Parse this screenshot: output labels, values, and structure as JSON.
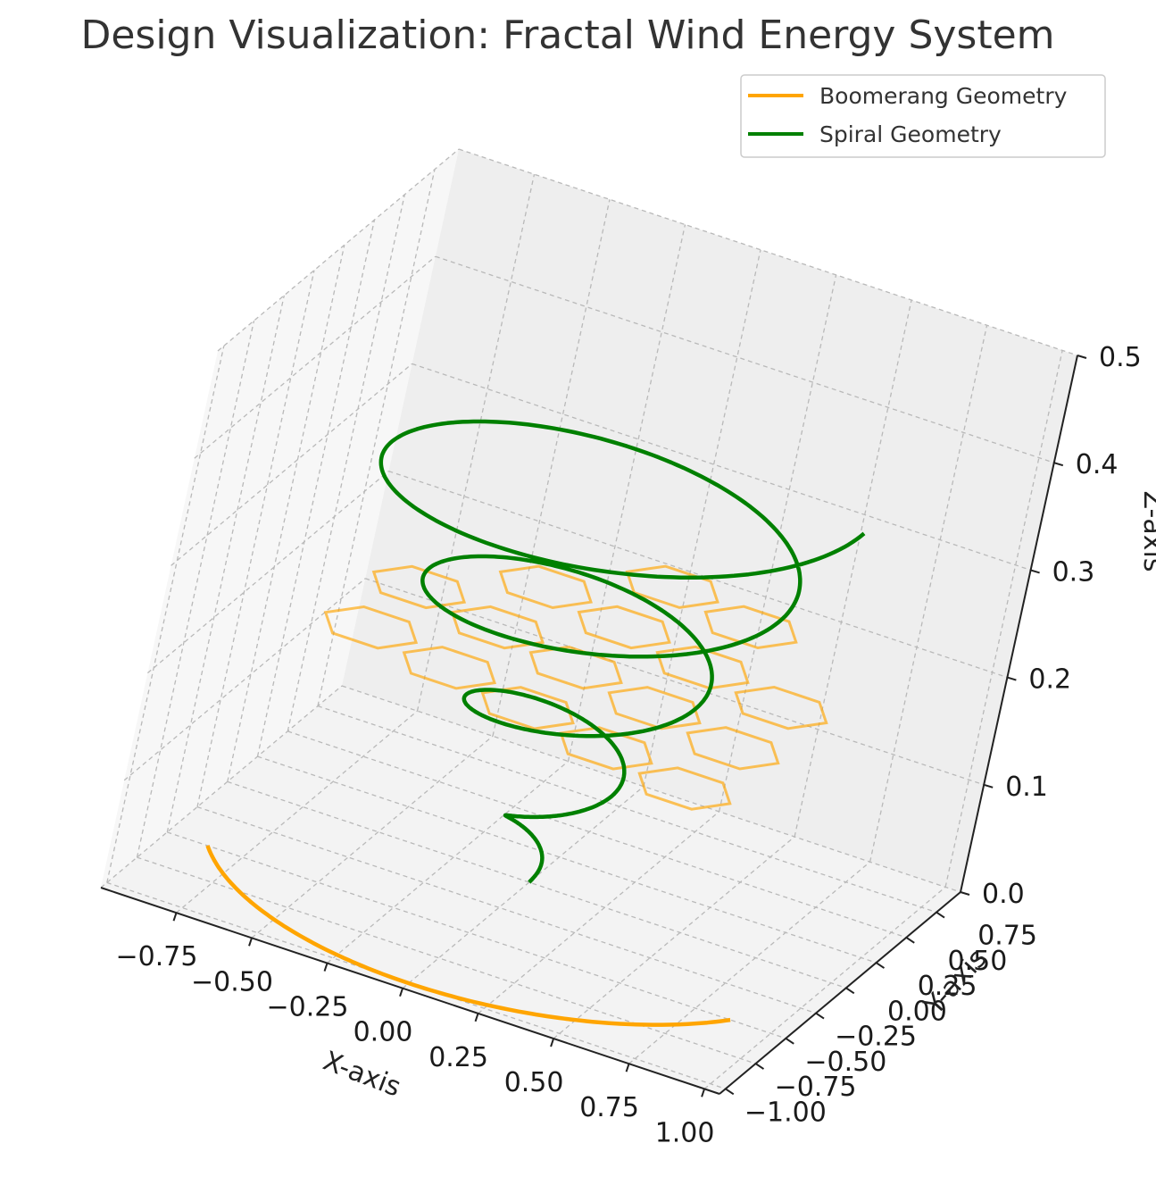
{
  "chart_data": {
    "type": "line",
    "projection": "3d",
    "title": "Design Visualization: Fractal Wind Energy System",
    "xlabel": "X-axis",
    "ylabel": "Y-axis",
    "zlabel": "Z-axis",
    "xlim": [
      -1.0,
      1.05
    ],
    "ylim": [
      -1.05,
      0.95
    ],
    "zlim": [
      0.0,
      0.5
    ],
    "x_ticks": [
      "−0.75",
      "−0.50",
      "−0.25",
      "0.00",
      "0.25",
      "0.50",
      "0.75",
      "1.00"
    ],
    "y_ticks": [
      "−1.00",
      "−0.75",
      "−0.50",
      "−0.25",
      "0.00",
      "0.25",
      "0.50",
      "0.75"
    ],
    "z_ticks": [
      "0.0",
      "0.1",
      "0.2",
      "0.3",
      "0.4",
      "0.5"
    ],
    "x_tick_values": [
      -0.75,
      -0.5,
      -0.25,
      0.0,
      0.25,
      0.5,
      0.75,
      1.0
    ],
    "y_tick_values": [
      -1.0,
      -0.75,
      -0.5,
      -0.25,
      0.0,
      0.25,
      0.5,
      0.75
    ],
    "z_tick_values": [
      0.0,
      0.1,
      0.2,
      0.3,
      0.4,
      0.5
    ],
    "grid": true,
    "legend_position": "top-right",
    "series": [
      {
        "name": "Boomerang Geometry",
        "color": "#FFA500",
        "shape": "arc in z=0 plane",
        "arc": {
          "center": [
            0.0,
            0.0
          ],
          "radius": 1.0,
          "angle_start_deg": -150,
          "angle_end_deg": -30,
          "z": 0.0
        }
      },
      {
        "name": "Spiral Geometry",
        "color": "#008000",
        "shape": "conical spiral",
        "spiral": {
          "turns": 4,
          "z_start": 0.0,
          "z_end": 0.4,
          "r_start": 0.0,
          "r_end": 0.8
        }
      }
    ],
    "hexagon_overlay": {
      "color": "#FFA500",
      "opacity": 0.65,
      "radius": 0.15,
      "z": 0.2,
      "centers": [
        [
          -0.6,
          -0.2
        ],
        [
          -0.3,
          -0.3
        ],
        [
          0.0,
          -0.4
        ],
        [
          0.3,
          -0.5
        ],
        [
          0.6,
          -0.6
        ],
        [
          -0.6,
          0.2
        ],
        [
          -0.3,
          0.1
        ],
        [
          0.0,
          0.0
        ],
        [
          0.3,
          -0.1
        ],
        [
          0.6,
          -0.2
        ],
        [
          -0.3,
          0.5
        ],
        [
          0.0,
          0.4
        ],
        [
          0.3,
          0.3
        ],
        [
          0.6,
          0.2
        ],
        [
          0.3,
          0.7
        ],
        [
          0.0,
          0.8
        ]
      ]
    }
  }
}
